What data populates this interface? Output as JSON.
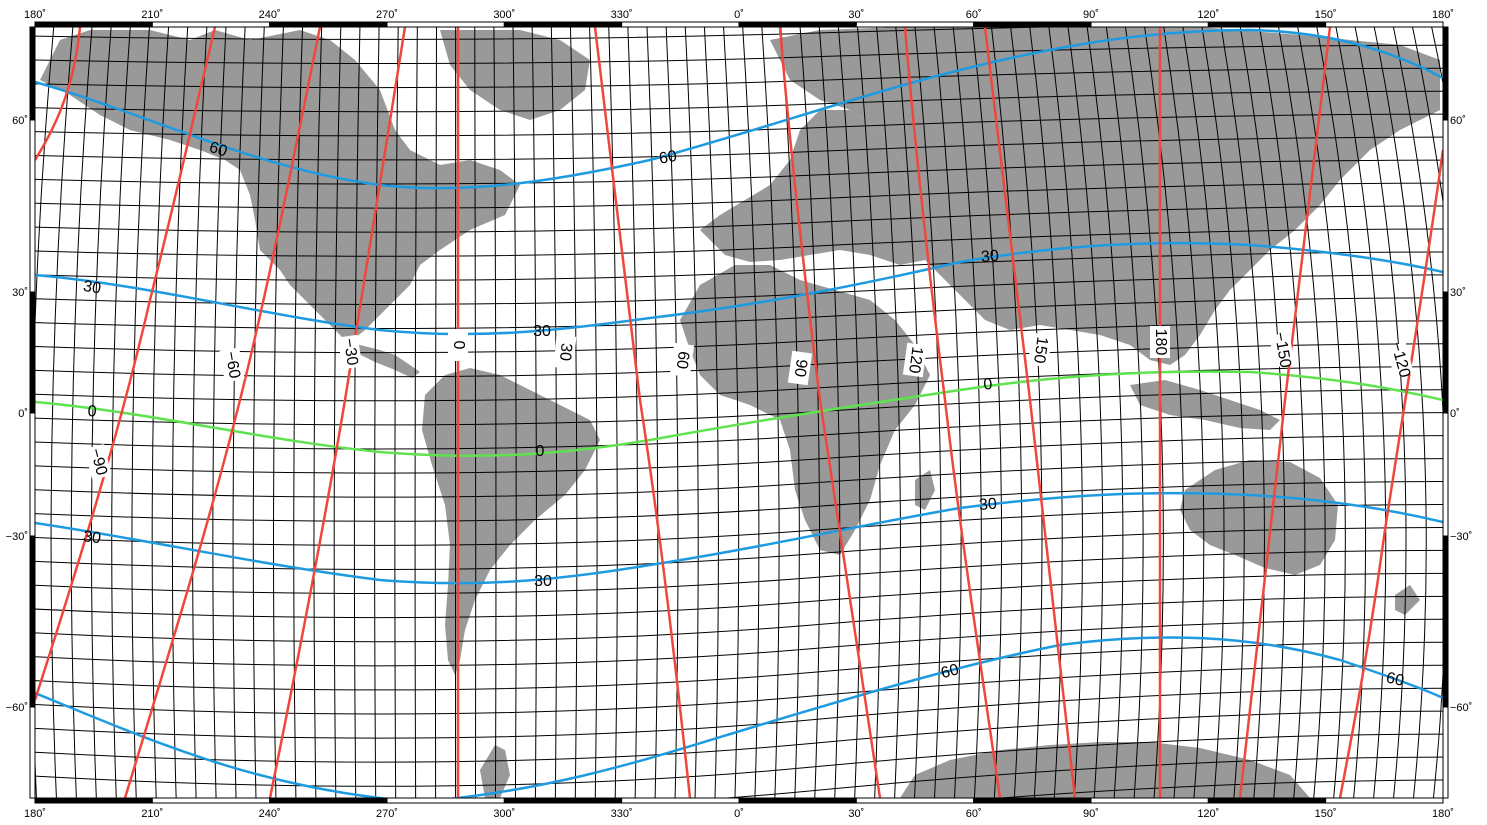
{
  "map": {
    "colors": {
      "land": "#999999",
      "ocean": "#ffffff",
      "grid": "#000000",
      "latitude_contours": "#1e9be0",
      "longitude_contours": "#f0473c",
      "equator_contour": "#5ee34f",
      "frame": "#000000"
    },
    "top_axis_labels": [
      "180˚",
      "210˚",
      "240˚",
      "270˚",
      "300˚",
      "330˚",
      "0˚",
      "30˚",
      "60˚",
      "90˚",
      "120˚",
      "150˚",
      "180˚"
    ],
    "bottom_axis_labels": [
      "180˚",
      "210˚",
      "240˚",
      "270˚",
      "300˚",
      "330˚",
      "0˚",
      "30˚",
      "60˚",
      "90˚",
      "120˚",
      "150˚",
      "180˚"
    ],
    "left_axis_labels": [
      "60˚",
      "30˚",
      "0˚",
      "−30˚",
      "−60˚"
    ],
    "right_axis_labels": [
      "60˚",
      "30˚",
      "0˚",
      "−30˚",
      "−60˚"
    ],
    "contour_labels": {
      "latitude": [
        "60",
        "60",
        "30",
        "30",
        "30",
        "0",
        "0",
        "0",
        "30",
        "30",
        "30",
        "60",
        "60"
      ],
      "longitude": [
        "−90",
        "−60",
        "−30",
        "0",
        "30",
        "60",
        "90",
        "120",
        "150",
        "180",
        "−150",
        "−120"
      ]
    }
  }
}
